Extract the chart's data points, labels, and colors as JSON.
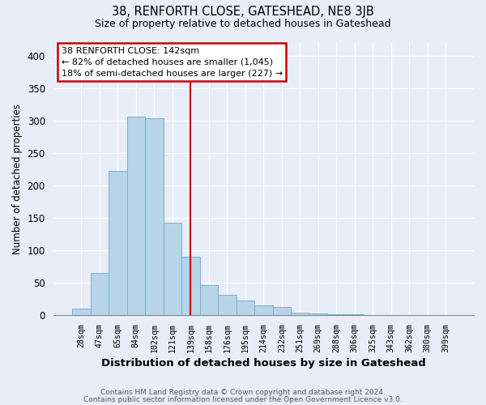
{
  "title": "38, RENFORTH CLOSE, GATESHEAD, NE8 3JB",
  "subtitle": "Size of property relative to detached houses in Gateshead",
  "xlabel": "Distribution of detached houses by size in Gateshead",
  "ylabel": "Number of detached properties",
  "bar_color": "#b8d4e8",
  "bar_edge_color": "#7aafcf",
  "categories": [
    "28sqm",
    "47sqm",
    "65sqm",
    "84sqm",
    "102sqm",
    "121sqm",
    "139sqm",
    "158sqm",
    "176sqm",
    "195sqm",
    "214sqm",
    "232sqm",
    "251sqm",
    "269sqm",
    "288sqm",
    "306sqm",
    "325sqm",
    "343sqm",
    "362sqm",
    "380sqm",
    "399sqm"
  ],
  "values": [
    10,
    65,
    222,
    306,
    303,
    142,
    90,
    46,
    31,
    23,
    16,
    13,
    4,
    3,
    2,
    2,
    1,
    1,
    1,
    1,
    1
  ],
  "ylim": [
    0,
    420
  ],
  "yticks": [
    0,
    50,
    100,
    150,
    200,
    250,
    300,
    350,
    400
  ],
  "vline_x": 6,
  "vline_color": "#cc0000",
  "annotation_text": "38 RENFORTH CLOSE: 142sqm\n← 82% of detached houses are smaller (1,045)\n18% of semi-detached houses are larger (227) →",
  "annotation_box_color": "#ffffff",
  "annotation_box_edge": "#cc0000",
  "footer_line1": "Contains HM Land Registry data © Crown copyright and database right 2024.",
  "footer_line2": "Contains public sector information licensed under the Open Government Licence v3.0.",
  "background_color": "#e8eef8",
  "plot_bg_color": "#e8eef8"
}
